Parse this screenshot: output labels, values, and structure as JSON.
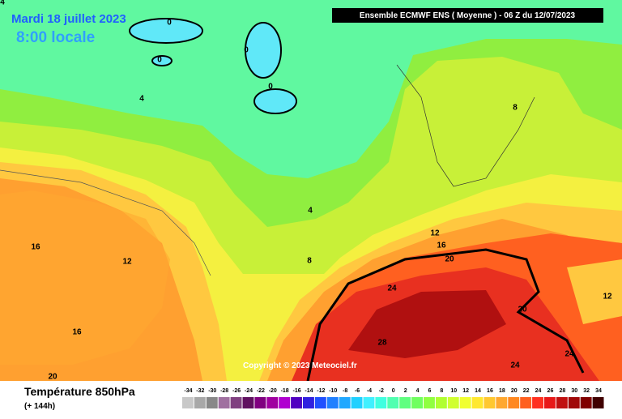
{
  "header": {
    "date": "Mardi 18 juillet 2023",
    "time": "8:00 locale",
    "model": "Ensemble ECMWF ENS  ( Moyenne )  -  06 Z du 12/07/2023"
  },
  "copyright": "Copyright © 2023 Meteociel.fr",
  "contour_labels": [
    4,
    0,
    0,
    0,
    0,
    4,
    8,
    4,
    8,
    12,
    16,
    12,
    16,
    20,
    24,
    12,
    20,
    16,
    28,
    24,
    24,
    20
  ],
  "footer": {
    "title": "Température 850hPa",
    "subtitle": "(+ 144h)"
  },
  "legend": {
    "labels": [
      -34,
      -32,
      -30,
      -28,
      -26,
      -24,
      -22,
      -20,
      -18,
      -16,
      -14,
      -12,
      -10,
      -8,
      -6,
      -4,
      -2,
      0,
      2,
      4,
      6,
      8,
      10,
      12,
      14,
      16,
      18,
      20,
      22,
      24,
      26,
      28,
      30,
      32,
      34
    ],
    "colors": [
      "#c8c8c8",
      "#a8a8a8",
      "#888888",
      "#a070a0",
      "#804080",
      "#601060",
      "#800080",
      "#a000a0",
      "#b000d0",
      "#5000c0",
      "#3020e0",
      "#2050ff",
      "#2080ff",
      "#20a8ff",
      "#20d0ff",
      "#40f0ff",
      "#40ffe0",
      "#50ffb0",
      "#60ff80",
      "#70ff60",
      "#90ff40",
      "#b0ff30",
      "#d0ff30",
      "#f0ff30",
      "#ffe830",
      "#ffc830",
      "#ffa830",
      "#ff8820",
      "#ff6020",
      "#ff3020",
      "#e81818",
      "#c01010",
      "#a00808",
      "#800000",
      "#400000"
    ]
  }
}
